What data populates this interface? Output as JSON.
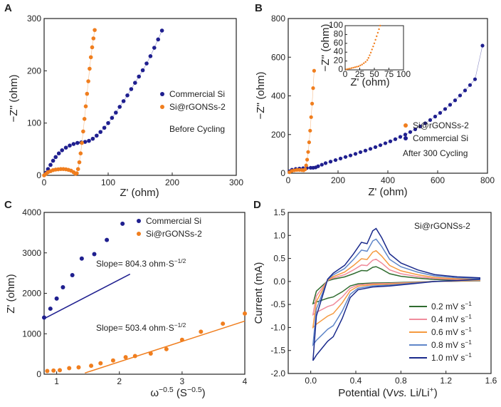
{
  "colors": {
    "blue": "#1f1f8f",
    "orange": "#f07e1e",
    "green": "#2f6b2f",
    "pink": "#f08c9c",
    "orange2": "#f59a3f",
    "lightblue": "#5f86c9",
    "navy": "#1a2a8c"
  },
  "chart_data": [
    {
      "panel": "A",
      "type": "scatter",
      "xlabel": "Z' (ohm)",
      "ylabel": "−Z'' (ohm)",
      "xlim": [
        0,
        300
      ],
      "ylim": [
        0,
        300
      ],
      "xticks": [
        0,
        100,
        200,
        300
      ],
      "yticks": [
        0,
        100,
        200,
        300
      ],
      "legend": [
        "Commercial Si",
        "Si@rGONSs-2"
      ],
      "annotation": "Before Cycling",
      "series": [
        {
          "name": "Commercial Si",
          "color": "blue",
          "x": [
            3,
            6,
            10,
            14,
            18,
            23,
            28,
            34,
            40,
            46,
            52,
            58,
            64,
            70,
            76,
            82,
            88,
            94,
            100,
            106,
            112,
            118,
            124,
            130,
            136,
            142,
            148,
            154,
            160,
            166,
            172,
            178,
            184
          ],
          "y": [
            5,
            12,
            20,
            28,
            35,
            42,
            48,
            53,
            57,
            60,
            62,
            63,
            64,
            66,
            70,
            76,
            83,
            91,
            100,
            110,
            120,
            131,
            142,
            153,
            165,
            177,
            189,
            201,
            214,
            228,
            244,
            260,
            277
          ]
        },
        {
          "name": "Si@rGONSs-2",
          "color": "orange",
          "x": [
            0,
            3,
            6,
            10,
            14,
            18,
            22,
            26,
            30,
            34,
            38,
            42,
            46,
            49,
            51,
            53,
            55,
            57,
            59,
            61,
            63,
            65,
            67,
            69,
            71,
            73,
            75,
            77,
            79
          ],
          "y": [
            0,
            3,
            6,
            8,
            10,
            11,
            11.5,
            12,
            12,
            11.5,
            10.5,
            9,
            6,
            3,
            4,
            12,
            25,
            42,
            62,
            84,
            108,
            132,
            156,
            180,
            204,
            226,
            245,
            262,
            278
          ]
        }
      ]
    },
    {
      "panel": "B",
      "type": "scatter",
      "xlabel": "Z' (ohm)",
      "ylabel": "−Z'' (ohm)",
      "xlim": [
        0,
        800
      ],
      "ylim": [
        0,
        800
      ],
      "xticks": [
        0,
        200,
        400,
        600,
        800
      ],
      "yticks": [
        0,
        200,
        400,
        600,
        800
      ],
      "legend": [
        "Si@rGONSs-2",
        "Commercial Si"
      ],
      "annotation": "After 300 Cycling",
      "series": [
        {
          "name": "Si@rGONSs-2",
          "color": "orange",
          "x": [
            5,
            15,
            25,
            35,
            45,
            55,
            62,
            68,
            72,
            76,
            80,
            84,
            88,
            92,
            96,
            100,
            104
          ],
          "y": [
            5,
            12,
            15,
            17,
            17,
            16,
            15,
            20,
            40,
            70,
            110,
            160,
            220,
            290,
            360,
            440,
            530
          ]
        },
        {
          "name": "Commercial Si",
          "color": "blue",
          "x": [
            5,
            15,
            30,
            45,
            60,
            75,
            90,
            100,
            110,
            120,
            135,
            150,
            170,
            190,
            210,
            230,
            250,
            270,
            290,
            310,
            330,
            350,
            370,
            390,
            410,
            430,
            450,
            470,
            490,
            510,
            530,
            550,
            570,
            590,
            610,
            630,
            650,
            670,
            690,
            710,
            730,
            750,
            780
          ],
          "y": [
            10,
            18,
            22,
            24,
            26,
            27,
            28,
            28,
            30,
            36,
            44,
            52,
            60,
            68,
            76,
            84,
            92,
            100,
            109,
            117,
            126,
            135,
            145,
            155,
            165,
            176,
            188,
            200,
            213,
            227,
            242,
            258,
            275,
            293,
            312,
            332,
            354,
            377,
            402,
            428,
            456,
            486,
            660
          ]
        }
      ],
      "inset": {
        "xlabel": "Z' (ohm)",
        "ylabel": "−Z'' (ohm)",
        "xlim": [
          0,
          100
        ],
        "ylim": [
          0,
          100
        ],
        "xticks": [
          0,
          25,
          50,
          75,
          100
        ],
        "yticks": [
          0,
          20,
          40,
          60,
          80,
          100
        ],
        "x": [
          2,
          5,
          8,
          11,
          14,
          17,
          20,
          23,
          26,
          29,
          32,
          35,
          38,
          40,
          42,
          44,
          46,
          48,
          50,
          52,
          54,
          56,
          58,
          60
        ],
        "y": [
          1,
          2,
          3,
          4,
          5,
          6,
          7,
          8,
          10,
          12,
          15,
          18,
          22,
          27,
          33,
          39,
          46,
          53,
          60,
          68,
          76,
          84,
          92,
          100
        ]
      }
    },
    {
      "panel": "C",
      "type": "scatter",
      "xlabel": "ω",
      "xlabel_sup": "−0.5",
      "xlabel_unit": " (S",
      "xlabel_unit_sup": "−0.5",
      "xlabel_end": ")",
      "ylabel": "Z' (ohm)",
      "xlim": [
        0.8,
        4
      ],
      "ylim": [
        0,
        4000
      ],
      "xticks": [
        1,
        2,
        3,
        4
      ],
      "yticks": [
        0,
        1000,
        2000,
        3000,
        4000
      ],
      "legend": [
        "Commercial Si",
        "Si@rGONSs-2"
      ],
      "annotations": [
        {
          "text": "Slope= 804.3 ohm·S",
          "sup": "−1/2"
        },
        {
          "text": "Slope= 503.4 ohm·S",
          "sup": "−1/2"
        }
      ],
      "series": [
        {
          "name": "Commercial Si",
          "color": "blue",
          "x": [
            0.8,
            0.9,
            1.0,
            1.1,
            1.25,
            1.4,
            1.6,
            1.8,
            2.05
          ],
          "y": [
            1400,
            1620,
            1870,
            2150,
            2450,
            2860,
            2970,
            3320,
            3720
          ],
          "fit": {
            "slope": 804.3,
            "intercept": 730,
            "x0": 0.8,
            "x1": 2.17
          }
        },
        {
          "name": "Si@rGONSs-2",
          "color": "orange",
          "x": [
            0.85,
            0.95,
            1.05,
            1.2,
            1.35,
            1.55,
            1.7,
            1.9,
            2.1,
            2.25,
            2.5,
            2.75,
            3.0,
            3.3,
            3.65,
            4.0
          ],
          "y": [
            80,
            90,
            100,
            150,
            170,
            210,
            270,
            340,
            420,
            450,
            510,
            620,
            850,
            1050,
            1250,
            1500
          ],
          "fit": {
            "slope": 503.4,
            "intercept": -700,
            "x0": 1.45,
            "x1": 4.0
          }
        }
      ]
    },
    {
      "panel": "D",
      "type": "line",
      "xlabel": "Potential (V",
      "xlabel_ital": "vs.",
      "xlabel_rest": " Li/Li",
      "xlabel_sup": "+",
      "xlabel_end": ")",
      "ylabel": "Current (mA)",
      "xlim": [
        -0.2,
        1.6
      ],
      "ylim": [
        -2.0,
        1.5
      ],
      "xticks": [
        0.0,
        0.4,
        0.8,
        1.2,
        1.6
      ],
      "xtick_labels": [
        "0.0",
        "0.4",
        "0.8",
        "1.2",
        "1.6"
      ],
      "yticks": [
        -2.0,
        -1.5,
        -1.0,
        -0.5,
        0.0,
        0.5,
        1.0,
        1.5
      ],
      "ytick_labels": [
        "-2.0",
        "-1.5",
        "-1.0",
        "-0.5",
        "0.0",
        "0.5",
        "1.0",
        "1.5"
      ],
      "title": "Si@rGONSs-2",
      "series": [
        {
          "name": "0.2 mV s",
          "sup": "−1",
          "color": "green",
          "scale": 0.28
        },
        {
          "name": "0.4 mV s",
          "sup": "−1",
          "color": "pink",
          "scale": 0.42
        },
        {
          "name": "0.6 mV s",
          "sup": "−1",
          "color": "orange2",
          "scale": 0.58
        },
        {
          "name": "0.8 mV s",
          "sup": "−1",
          "color": "lightblue",
          "scale": 0.8
        },
        {
          "name": "1.0 mV s",
          "sup": "−1",
          "color": "navy",
          "scale": 1.0
        }
      ]
    }
  ]
}
